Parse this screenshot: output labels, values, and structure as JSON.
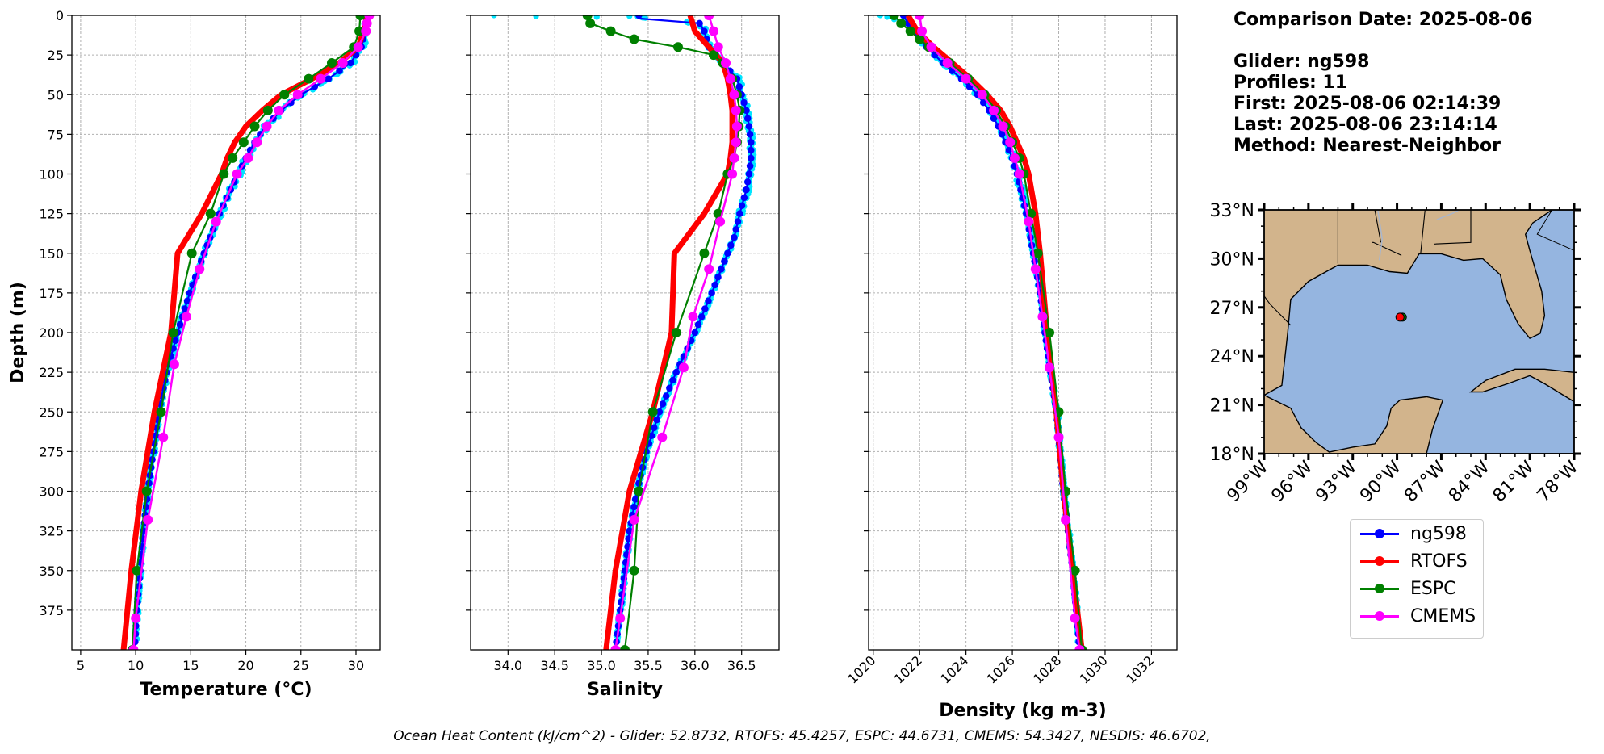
{
  "info": {
    "comparison_date": "Comparison Date: 2025-08-06",
    "glider": "Glider: ng598",
    "profiles": "Profiles: 11",
    "first": "First: 2025-08-06 02:14:39",
    "last": "Last: 2025-08-06 23:14:14",
    "method": "Method: Nearest-Neighbor"
  },
  "footer": "Ocean Heat Content (kJ/cm^2) - Glider: 52.8732,  RTOFS: 45.4257,  ESPC: 44.6731,  CMEMS: 54.3427,  NESDIS: 46.6702,",
  "colors": {
    "ng598": "#0000ff",
    "ng598_scatter": "#00e5ff",
    "RTOFS": "#ff0000",
    "ESPC": "#008000",
    "CMEMS": "#ff00ff",
    "land": "#d2b48c",
    "water": "#95b5e0"
  },
  "legend": [
    {
      "label": "ng598",
      "color": "#0000ff"
    },
    {
      "label": "RTOFS",
      "color": "#ff0000"
    },
    {
      "label": "ESPC",
      "color": "#008000"
    },
    {
      "label": "CMEMS",
      "color": "#ff00ff"
    }
  ],
  "map": {
    "lat_ticks": [
      "18°N",
      "21°N",
      "24°N",
      "27°N",
      "30°N",
      "33°N"
    ],
    "lon_ticks": [
      "99°W",
      "96°W",
      "93°W",
      "90°W",
      "87°W",
      "84°W",
      "81°W",
      "78°W"
    ],
    "lon_range": [
      -99,
      -78
    ],
    "lat_range": [
      18,
      33
    ],
    "glider_position": {
      "lon": -89.8,
      "lat": 26.4
    }
  },
  "chart_data": [
    {
      "type": "line",
      "title": "",
      "xlabel": "Temperature (°C)",
      "ylabel": "Depth (m)",
      "xlim": [
        4.2,
        32.2
      ],
      "ylim": [
        400,
        0
      ],
      "xticks": [
        5,
        10,
        15,
        20,
        25,
        30
      ],
      "yticks": [
        0,
        25,
        50,
        75,
        100,
        125,
        150,
        175,
        200,
        225,
        250,
        275,
        300,
        325,
        350,
        375
      ],
      "grid": true,
      "series": [
        {
          "name": "ng598",
          "depth": [
            0,
            10,
            20,
            30,
            40,
            50,
            60,
            70,
            80,
            90,
            100,
            125,
            150,
            175,
            200,
            225,
            250,
            275,
            300,
            325,
            350,
            375,
            400
          ],
          "values": [
            30.9,
            30.8,
            30.5,
            29.5,
            27.5,
            25.0,
            23.2,
            21.8,
            20.8,
            20.0,
            19.3,
            17.6,
            16.2,
            14.9,
            13.8,
            12.8,
            12.1,
            11.6,
            11.1,
            10.7,
            10.4,
            10.1,
            9.9
          ]
        },
        {
          "name": "RTOFS",
          "depth": [
            0,
            10,
            20,
            30,
            40,
            50,
            60,
            70,
            80,
            90,
            100,
            125,
            150,
            200,
            250,
            300,
            350,
            400
          ],
          "values": [
            31.0,
            30.7,
            30.2,
            28.5,
            26.0,
            23.2,
            21.5,
            20.0,
            19.0,
            18.3,
            17.8,
            16.0,
            13.8,
            13.2,
            11.7,
            10.5,
            9.6,
            8.9
          ]
        },
        {
          "name": "ESPC",
          "depth": [
            0,
            10,
            20,
            30,
            40,
            50,
            60,
            70,
            80,
            90,
            100,
            125,
            150,
            200,
            250,
            300,
            350,
            400
          ],
          "values": [
            30.4,
            30.3,
            29.8,
            27.8,
            25.7,
            23.5,
            22.0,
            20.8,
            19.8,
            18.8,
            18.0,
            16.8,
            15.1,
            13.4,
            12.3,
            11.0,
            10.1,
            9.7
          ]
        },
        {
          "name": "CMEMS",
          "depth": [
            0,
            5,
            10,
            20,
            30,
            40,
            50,
            60,
            70,
            80,
            90,
            100,
            130,
            160,
            190,
            220,
            266,
            318,
            380,
            400
          ],
          "values": [
            31.2,
            31.0,
            30.9,
            30.2,
            28.8,
            26.8,
            24.7,
            23.0,
            21.9,
            21.0,
            20.2,
            19.2,
            17.3,
            15.8,
            14.6,
            13.5,
            12.5,
            11.1,
            10.0,
            9.8
          ]
        }
      ]
    },
    {
      "type": "line",
      "title": "",
      "xlabel": "Salinity",
      "ylabel": "",
      "xlim": [
        33.6,
        36.9
      ],
      "ylim": [
        400,
        0
      ],
      "xticks": [
        "34.0",
        "34.5",
        "35.0",
        "35.5",
        "36.0",
        "36.5"
      ],
      "grid": true,
      "series": [
        {
          "name": "ng598",
          "depth": [
            0,
            2,
            5,
            10,
            20,
            30,
            40,
            50,
            60,
            70,
            80,
            90,
            100,
            110,
            125,
            140,
            150,
            175,
            200,
            225,
            250,
            275,
            300,
            325,
            350,
            375,
            400
          ],
          "values": [
            35.4,
            35.4,
            36.05,
            36.1,
            36.15,
            36.3,
            36.45,
            36.5,
            36.55,
            36.58,
            36.6,
            36.6,
            36.58,
            36.55,
            36.48,
            36.42,
            36.35,
            36.18,
            36.0,
            35.8,
            35.62,
            35.48,
            35.38,
            35.3,
            35.25,
            35.2,
            35.15
          ]
        },
        {
          "name": "RTOFS",
          "depth": [
            0,
            10,
            20,
            30,
            40,
            50,
            60,
            70,
            80,
            90,
            100,
            125,
            150,
            200,
            250,
            300,
            350,
            400
          ],
          "values": [
            35.95,
            36.0,
            36.15,
            36.3,
            36.35,
            36.38,
            36.4,
            36.4,
            36.4,
            36.38,
            36.35,
            36.1,
            35.78,
            35.75,
            35.55,
            35.3,
            35.15,
            35.05
          ]
        },
        {
          "name": "ESPC",
          "depth": [
            0,
            5,
            10,
            15,
            20,
            25,
            30,
            40,
            50,
            60,
            70,
            80,
            90,
            100,
            125,
            150,
            200,
            250,
            300,
            350,
            400
          ],
          "values": [
            34.85,
            34.88,
            35.1,
            35.35,
            35.82,
            36.2,
            36.3,
            36.4,
            36.45,
            36.48,
            36.47,
            36.45,
            36.42,
            36.35,
            36.25,
            36.1,
            35.8,
            35.55,
            35.4,
            35.35,
            35.25
          ]
        },
        {
          "name": "CMEMS",
          "depth": [
            0,
            10,
            20,
            30,
            40,
            50,
            60,
            70,
            80,
            90,
            100,
            130,
            160,
            190,
            222,
            266,
            318,
            380,
            400
          ],
          "values": [
            36.15,
            36.2,
            36.25,
            36.33,
            36.38,
            36.42,
            36.44,
            36.45,
            36.44,
            36.42,
            36.4,
            36.27,
            36.15,
            35.98,
            35.88,
            35.65,
            35.35,
            35.2,
            35.15
          ]
        }
      ]
    },
    {
      "type": "line",
      "title": "",
      "xlabel": "Density (kg m-3)",
      "ylabel": "",
      "xlim": [
        1019.8,
        1033.1
      ],
      "ylim": [
        400,
        0
      ],
      "xticks": [
        "1020",
        "1022",
        "1024",
        "1026",
        "1028",
        "1030",
        "1032"
      ],
      "grid": true,
      "series": [
        {
          "name": "ng598",
          "depth": [
            0,
            10,
            20,
            30,
            40,
            50,
            60,
            70,
            80,
            90,
            100,
            125,
            150,
            175,
            200,
            250,
            300,
            350,
            400
          ],
          "values": [
            1021.3,
            1021.7,
            1022.3,
            1023.0,
            1023.8,
            1024.5,
            1025.0,
            1025.4,
            1025.7,
            1026.0,
            1026.2,
            1026.6,
            1026.9,
            1027.2,
            1027.4,
            1027.9,
            1028.2,
            1028.6,
            1028.9
          ]
        },
        {
          "name": "RTOFS",
          "depth": [
            0,
            10,
            20,
            30,
            40,
            50,
            60,
            70,
            80,
            90,
            100,
            125,
            150,
            200,
            250,
            300,
            350,
            400
          ],
          "values": [
            1021.5,
            1021.9,
            1022.6,
            1023.4,
            1024.2,
            1024.9,
            1025.5,
            1025.9,
            1026.2,
            1026.5,
            1026.7,
            1027.0,
            1027.2,
            1027.5,
            1027.9,
            1028.2,
            1028.6,
            1029.0
          ]
        },
        {
          "name": "ESPC",
          "depth": [
            0,
            5,
            10,
            15,
            20,
            30,
            40,
            50,
            60,
            70,
            80,
            90,
            100,
            125,
            150,
            200,
            250,
            300,
            350,
            400
          ],
          "values": [
            1020.9,
            1021.2,
            1021.6,
            1022.0,
            1022.4,
            1023.3,
            1024.1,
            1024.8,
            1025.3,
            1025.7,
            1026.0,
            1026.3,
            1026.5,
            1026.8,
            1027.1,
            1027.6,
            1028.0,
            1028.3,
            1028.7,
            1029.0
          ]
        },
        {
          "name": "CMEMS",
          "depth": [
            0,
            10,
            20,
            30,
            40,
            50,
            60,
            70,
            80,
            90,
            100,
            130,
            160,
            190,
            222,
            266,
            318,
            380,
            400
          ],
          "values": [
            1022.0,
            1022.1,
            1022.5,
            1023.2,
            1024.0,
            1024.7,
            1025.2,
            1025.6,
            1025.9,
            1026.1,
            1026.3,
            1026.7,
            1027.0,
            1027.3,
            1027.6,
            1028.0,
            1028.3,
            1028.7,
            1028.9
          ]
        }
      ]
    }
  ]
}
